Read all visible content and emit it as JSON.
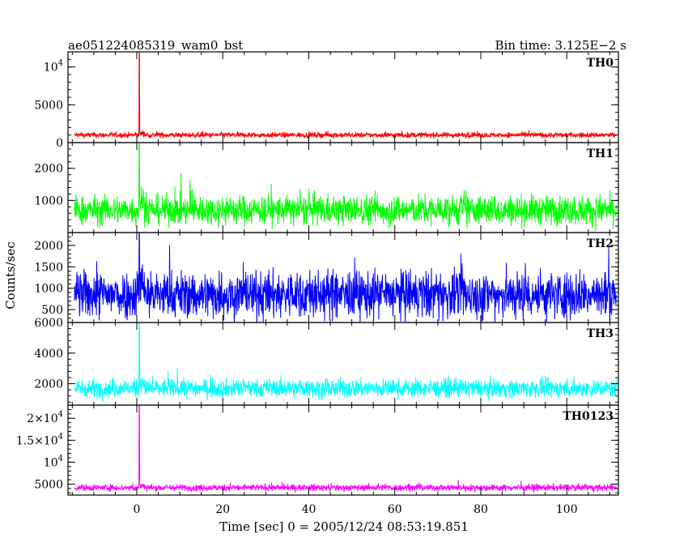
{
  "header": {
    "left_title": "ae051224085319_wam0_bst",
    "right_title": "Bin time: 3.125E−2 s"
  },
  "chart_data": {
    "type": "line",
    "xlabel": "Time [sec] 0 = 2005/12/24 08:53:19.851",
    "ylabel": "Counts/sec",
    "xlim": [
      -16,
      112
    ],
    "x_ticks": [
      0,
      20,
      40,
      60,
      80,
      100
    ],
    "x_tick_labels": [
      "0",
      "20",
      "40",
      "60",
      "80",
      "100"
    ],
    "grid": false,
    "panels": [
      {
        "name": "TH0",
        "color": "#ff0000",
        "ylim": [
          0,
          12000
        ],
        "y_ticks": [
          0,
          5000,
          10000
        ],
        "y_tick_labels": [
          {
            "base": "0"
          },
          {
            "base": "5000"
          },
          {
            "base": "10",
            "exp": "4"
          }
        ],
        "baseline": 1000,
        "noise": 180,
        "burst_time": 0.6,
        "burst_peak": 12000,
        "series": [
          {
            "x": -14.5,
            "y": 950
          },
          {
            "x": -8,
            "y": 1000
          },
          {
            "x": 0,
            "y": 1010
          },
          {
            "x": 0.6,
            "y": 12000
          },
          {
            "x": 1.5,
            "y": 1200
          },
          {
            "x": 20,
            "y": 980
          },
          {
            "x": 40,
            "y": 1000
          },
          {
            "x": 60,
            "y": 990
          },
          {
            "x": 80,
            "y": 1000
          },
          {
            "x": 100,
            "y": 980
          },
          {
            "x": 111.5,
            "y": 970
          }
        ]
      },
      {
        "name": "TH1",
        "color": "#00ff00",
        "ylim": [
          0,
          2800
        ],
        "y_ticks": [
          1000,
          2000
        ],
        "y_tick_labels": [
          {
            "base": "1000"
          },
          {
            "base": "2000"
          }
        ],
        "baseline": 700,
        "noise": 230,
        "burst_time": 0.6,
        "burst_peak": 2800,
        "series": [
          {
            "x": -14.5,
            "y": 680
          },
          {
            "x": -8,
            "y": 720
          },
          {
            "x": 0,
            "y": 710
          },
          {
            "x": 0.6,
            "y": 2800
          },
          {
            "x": 1.5,
            "y": 900
          },
          {
            "x": 20,
            "y": 700
          },
          {
            "x": 40,
            "y": 720
          },
          {
            "x": 60,
            "y": 700
          },
          {
            "x": 80,
            "y": 690
          },
          {
            "x": 100,
            "y": 700
          },
          {
            "x": 111.5,
            "y": 690
          }
        ]
      },
      {
        "name": "TH2",
        "color": "#0000ff",
        "ylim": [
          200,
          2300
        ],
        "y_ticks": [
          500,
          1000,
          1500,
          2000
        ],
        "y_tick_labels": [
          {
            "base": "500"
          },
          {
            "base": "1000"
          },
          {
            "base": "1500"
          },
          {
            "base": "2000"
          }
        ],
        "baseline": 850,
        "noise": 280,
        "burst_time": 0.6,
        "burst_peak": 2300,
        "series": [
          {
            "x": -14.5,
            "y": 850
          },
          {
            "x": -8,
            "y": 880
          },
          {
            "x": 0,
            "y": 860
          },
          {
            "x": 0.6,
            "y": 2300
          },
          {
            "x": 1.5,
            "y": 1000
          },
          {
            "x": 20,
            "y": 850
          },
          {
            "x": 40,
            "y": 870
          },
          {
            "x": 60,
            "y": 860
          },
          {
            "x": 80,
            "y": 850
          },
          {
            "x": 100,
            "y": 860
          },
          {
            "x": 111.5,
            "y": 850
          }
        ]
      },
      {
        "name": "TH3",
        "color": "#00ffff",
        "ylim": [
          600,
          6000
        ],
        "y_ticks": [
          2000,
          4000,
          6000
        ],
        "y_tick_labels": [
          {
            "base": "2000"
          },
          {
            "base": "4000"
          },
          {
            "base": "6000"
          }
        ],
        "baseline": 1700,
        "noise": 300,
        "burst_time": 0.6,
        "burst_peak": 6000,
        "series": [
          {
            "x": -14.5,
            "y": 1650
          },
          {
            "x": -8,
            "y": 1700
          },
          {
            "x": 0,
            "y": 1720
          },
          {
            "x": 0.6,
            "y": 6000
          },
          {
            "x": 1.5,
            "y": 2000
          },
          {
            "x": 20,
            "y": 1700
          },
          {
            "x": 40,
            "y": 1720
          },
          {
            "x": 60,
            "y": 1700
          },
          {
            "x": 80,
            "y": 1690
          },
          {
            "x": 100,
            "y": 1700
          },
          {
            "x": 111.5,
            "y": 1690
          }
        ]
      },
      {
        "name": "TH0123",
        "color": "#ff00ff",
        "ylim": [
          2500,
          23000
        ],
        "y_ticks": [
          5000,
          10000,
          15000,
          20000
        ],
        "y_tick_labels": [
          {
            "base": "5000"
          },
          {
            "base": "10",
            "exp": "4"
          },
          {
            "base": "1.5×10",
            "exp": "4"
          },
          {
            "base": "2×10",
            "exp": "4"
          }
        ],
        "baseline": 4200,
        "noise": 380,
        "burst_time": 0.6,
        "burst_peak": 23000,
        "series": [
          {
            "x": -14.5,
            "y": 4100
          },
          {
            "x": -8,
            "y": 4200
          },
          {
            "x": 0,
            "y": 4250
          },
          {
            "x": 0.6,
            "y": 23000
          },
          {
            "x": 1.5,
            "y": 5000
          },
          {
            "x": 20,
            "y": 4200
          },
          {
            "x": 40,
            "y": 4250
          },
          {
            "x": 60,
            "y": 4200
          },
          {
            "x": 80,
            "y": 4180
          },
          {
            "x": 100,
            "y": 4200
          },
          {
            "x": 111.5,
            "y": 4150
          }
        ]
      }
    ]
  }
}
